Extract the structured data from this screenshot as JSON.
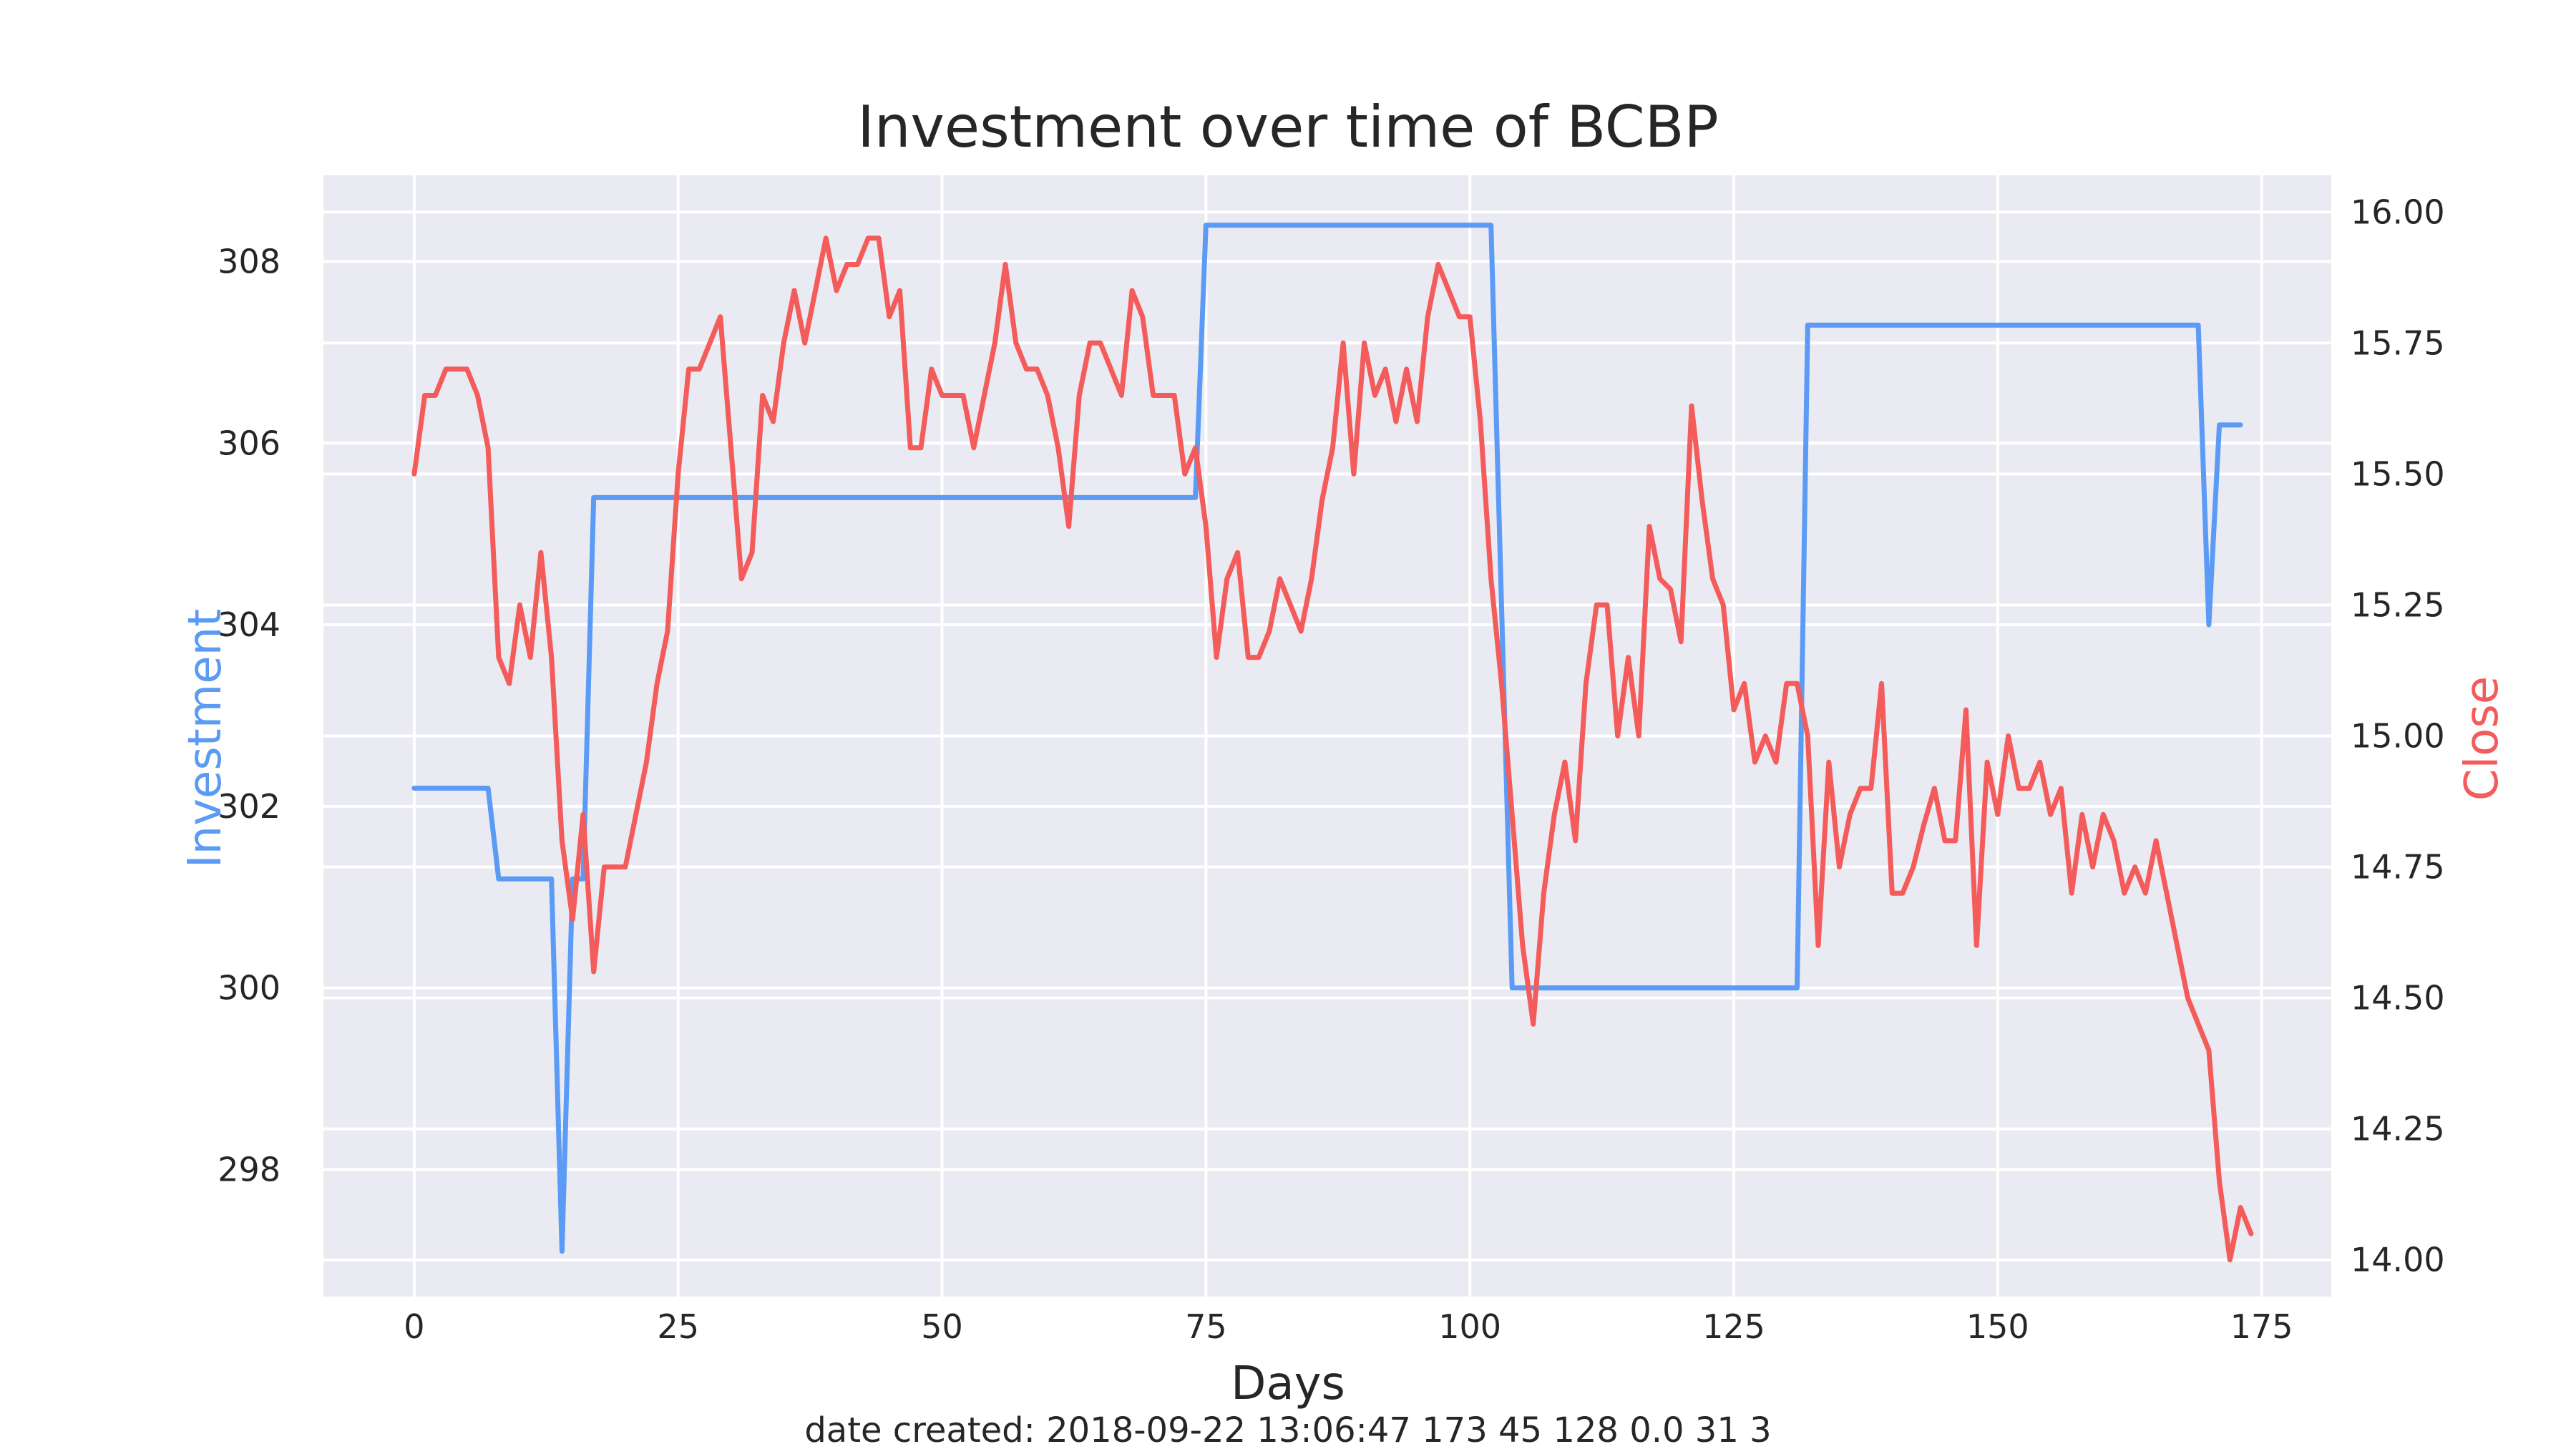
{
  "chart_data": {
    "type": "line",
    "title": "Investment over time of BCBP",
    "xlabel": "Days",
    "ylabel_left": "Investment",
    "ylabel_right": "Close",
    "footer": "date created: 2018-09-22 13:06:47 173 45 128 0.0 31 3",
    "grid": true,
    "xlim": [
      -8.6,
      181.6
    ],
    "ylim_left": [
      296.6,
      308.95
    ],
    "ylim_right": [
      13.93,
      16.07
    ],
    "x_ticks": [
      0,
      25,
      50,
      75,
      100,
      125,
      150,
      175
    ],
    "y_ticks_left": [
      298,
      300,
      302,
      304,
      306,
      308
    ],
    "y_ticks_right": [
      14.0,
      14.25,
      14.5,
      14.75,
      15.0,
      15.25,
      15.5,
      15.75,
      16.0
    ],
    "y_tick_labels_left": [
      "298",
      "300",
      "302",
      "304",
      "306",
      "308"
    ],
    "y_tick_labels_right": [
      "14.00",
      "14.25",
      "14.50",
      "14.75",
      "15.00",
      "15.25",
      "15.50",
      "15.75",
      "16.00"
    ],
    "colors": {
      "investment": "#5b9bf5",
      "close": "#f45b5b",
      "background": "#eaeaf2",
      "grid": "#ffffff"
    },
    "series": [
      {
        "axis": "left",
        "color": "#5b9bf5",
        "points": [
          [
            0,
            302.2
          ],
          [
            7,
            302.2
          ],
          [
            8,
            301.2
          ],
          [
            13,
            301.2
          ],
          [
            14,
            297.1
          ],
          [
            15,
            301.2
          ],
          [
            16,
            301.2
          ],
          [
            17,
            305.4
          ],
          [
            74,
            305.4
          ],
          [
            75,
            308.4
          ],
          [
            102,
            308.4
          ],
          [
            104,
            300.0
          ],
          [
            131,
            300.0
          ],
          [
            132,
            307.3
          ],
          [
            169,
            307.3
          ],
          [
            170,
            304.0
          ],
          [
            171,
            306.2
          ],
          [
            173,
            306.2
          ]
        ]
      },
      {
        "axis": "right",
        "color": "#f45b5b",
        "points": [
          [
            0,
            15.5
          ],
          [
            1,
            15.65
          ],
          [
            2,
            15.65
          ],
          [
            3,
            15.7
          ],
          [
            4,
            15.7
          ],
          [
            5,
            15.7
          ],
          [
            6,
            15.65
          ],
          [
            7,
            15.55
          ],
          [
            8,
            15.15
          ],
          [
            9,
            15.1
          ],
          [
            10,
            15.25
          ],
          [
            11,
            15.15
          ],
          [
            12,
            15.35
          ],
          [
            13,
            15.15
          ],
          [
            14,
            14.8
          ],
          [
            15,
            14.65
          ],
          [
            16,
            14.85
          ],
          [
            17,
            14.55
          ],
          [
            18,
            14.75
          ],
          [
            19,
            14.75
          ],
          [
            20,
            14.75
          ],
          [
            21,
            14.85
          ],
          [
            22,
            14.95
          ],
          [
            23,
            15.1
          ],
          [
            24,
            15.2
          ],
          [
            25,
            15.5
          ],
          [
            26,
            15.7
          ],
          [
            27,
            15.7
          ],
          [
            28,
            15.75
          ],
          [
            29,
            15.8
          ],
          [
            30,
            15.55
          ],
          [
            31,
            15.3
          ],
          [
            32,
            15.35
          ],
          [
            33,
            15.65
          ],
          [
            34,
            15.6
          ],
          [
            35,
            15.75
          ],
          [
            36,
            15.85
          ],
          [
            37,
            15.75
          ],
          [
            38,
            15.85
          ],
          [
            39,
            15.95
          ],
          [
            40,
            15.85
          ],
          [
            41,
            15.9
          ],
          [
            42,
            15.9
          ],
          [
            43,
            15.95
          ],
          [
            44,
            15.95
          ],
          [
            45,
            15.8
          ],
          [
            46,
            15.85
          ],
          [
            47,
            15.55
          ],
          [
            48,
            15.55
          ],
          [
            49,
            15.7
          ],
          [
            50,
            15.65
          ],
          [
            51,
            15.65
          ],
          [
            52,
            15.65
          ],
          [
            53,
            15.55
          ],
          [
            54,
            15.65
          ],
          [
            55,
            15.75
          ],
          [
            56,
            15.9
          ],
          [
            57,
            15.75
          ],
          [
            58,
            15.7
          ],
          [
            59,
            15.7
          ],
          [
            60,
            15.65
          ],
          [
            61,
            15.55
          ],
          [
            62,
            15.4
          ],
          [
            63,
            15.65
          ],
          [
            64,
            15.75
          ],
          [
            65,
            15.75
          ],
          [
            66,
            15.7
          ],
          [
            67,
            15.65
          ],
          [
            68,
            15.85
          ],
          [
            69,
            15.8
          ],
          [
            70,
            15.65
          ],
          [
            71,
            15.65
          ],
          [
            72,
            15.65
          ],
          [
            73,
            15.5
          ],
          [
            74,
            15.55
          ],
          [
            75,
            15.4
          ],
          [
            76,
            15.15
          ],
          [
            77,
            15.3
          ],
          [
            78,
            15.35
          ],
          [
            79,
            15.15
          ],
          [
            80,
            15.15
          ],
          [
            81,
            15.2
          ],
          [
            82,
            15.3
          ],
          [
            83,
            15.25
          ],
          [
            84,
            15.2
          ],
          [
            85,
            15.3
          ],
          [
            86,
            15.45
          ],
          [
            87,
            15.55
          ],
          [
            88,
            15.75
          ],
          [
            89,
            15.5
          ],
          [
            90,
            15.75
          ],
          [
            91,
            15.65
          ],
          [
            92,
            15.7
          ],
          [
            93,
            15.6
          ],
          [
            94,
            15.7
          ],
          [
            95,
            15.6
          ],
          [
            96,
            15.8
          ],
          [
            97,
            15.9
          ],
          [
            98,
            15.85
          ],
          [
            99,
            15.8
          ],
          [
            100,
            15.8
          ],
          [
            101,
            15.6
          ],
          [
            102,
            15.3
          ],
          [
            103,
            15.1
          ],
          [
            104,
            14.85
          ],
          [
            105,
            14.6
          ],
          [
            106,
            14.45
          ],
          [
            107,
            14.7
          ],
          [
            108,
            14.85
          ],
          [
            109,
            14.95
          ],
          [
            110,
            14.8
          ],
          [
            111,
            15.1
          ],
          [
            112,
            15.25
          ],
          [
            113,
            15.25
          ],
          [
            114,
            15.0
          ],
          [
            115,
            15.15
          ],
          [
            116,
            15.0
          ],
          [
            117,
            15.4
          ],
          [
            118,
            15.3
          ],
          [
            119,
            15.28
          ],
          [
            120,
            15.18
          ],
          [
            121,
            15.63
          ],
          [
            122,
            15.45
          ],
          [
            123,
            15.3
          ],
          [
            124,
            15.25
          ],
          [
            125,
            15.05
          ],
          [
            126,
            15.1
          ],
          [
            127,
            14.95
          ],
          [
            128,
            15.0
          ],
          [
            129,
            14.95
          ],
          [
            130,
            15.1
          ],
          [
            131,
            15.1
          ],
          [
            132,
            15.0
          ],
          [
            133,
            14.6
          ],
          [
            134,
            14.95
          ],
          [
            135,
            14.75
          ],
          [
            136,
            14.85
          ],
          [
            137,
            14.9
          ],
          [
            138,
            14.9
          ],
          [
            139,
            15.1
          ],
          [
            140,
            14.7
          ],
          [
            141,
            14.7
          ],
          [
            142,
            14.75
          ],
          [
            143,
            14.83
          ],
          [
            144,
            14.9
          ],
          [
            145,
            14.8
          ],
          [
            146,
            14.8
          ],
          [
            147,
            15.05
          ],
          [
            148,
            14.6
          ],
          [
            149,
            14.95
          ],
          [
            150,
            14.85
          ],
          [
            151,
            15.0
          ],
          [
            152,
            14.9
          ],
          [
            153,
            14.9
          ],
          [
            154,
            14.95
          ],
          [
            155,
            14.85
          ],
          [
            156,
            14.9
          ],
          [
            157,
            14.7
          ],
          [
            158,
            14.85
          ],
          [
            159,
            14.75
          ],
          [
            160,
            14.85
          ],
          [
            161,
            14.8
          ],
          [
            162,
            14.7
          ],
          [
            163,
            14.75
          ],
          [
            164,
            14.7
          ],
          [
            165,
            14.8
          ],
          [
            166,
            14.7
          ],
          [
            167,
            14.6
          ],
          [
            168,
            14.5
          ],
          [
            169,
            14.45
          ],
          [
            170,
            14.4
          ],
          [
            171,
            14.15
          ],
          [
            172,
            14.0
          ],
          [
            173,
            14.1
          ],
          [
            174,
            14.05
          ]
        ]
      }
    ]
  }
}
